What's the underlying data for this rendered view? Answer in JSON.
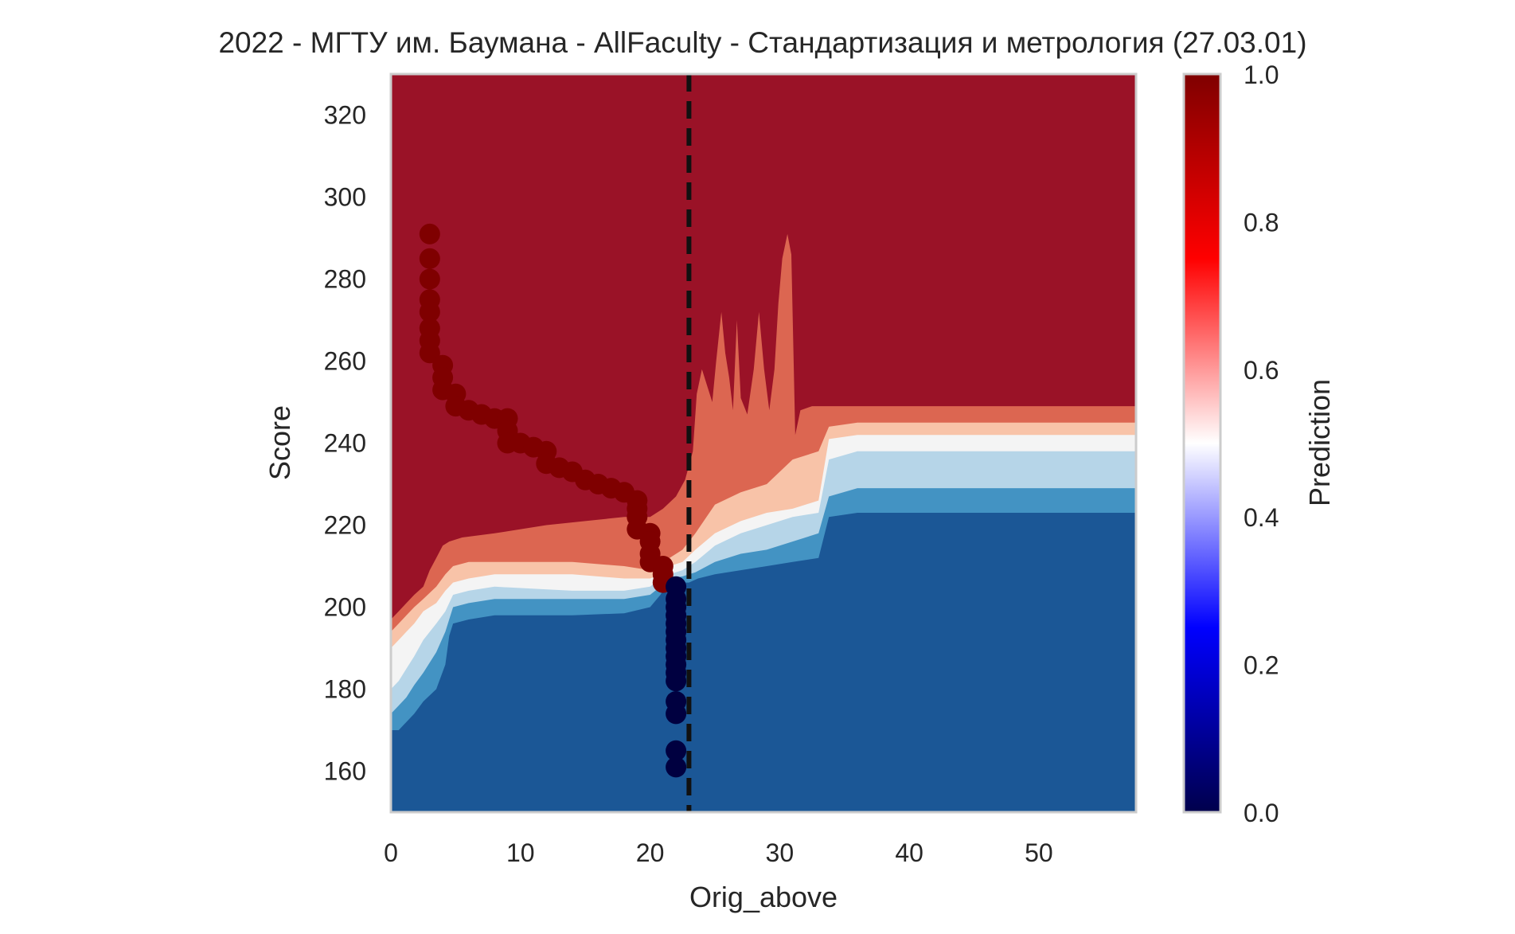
{
  "chart_data": {
    "type": "heatmap",
    "title": "2022 - МГТУ им. Баумана - AllFaculty - Стандартизация и метрология (27.03.01)",
    "xlabel": "Orig_above",
    "ylabel": "Score",
    "xlim": [
      0,
      57.5
    ],
    "ylim": [
      150,
      330
    ],
    "x_ticks": [
      "0",
      "10",
      "20",
      "30",
      "40",
      "50"
    ],
    "x_tick_values": [
      0,
      10,
      20,
      30,
      40,
      50
    ],
    "y_ticks": [
      "160",
      "180",
      "200",
      "220",
      "240",
      "260",
      "280",
      "300",
      "320"
    ],
    "y_tick_values": [
      160,
      180,
      200,
      220,
      240,
      260,
      280,
      300,
      320
    ],
    "colorbar": {
      "label": "Prediction",
      "colormap": "seismic",
      "range": [
        0,
        1
      ],
      "ticks": [
        "0.0",
        "0.2",
        "0.4",
        "0.6",
        "0.8",
        "1.0"
      ],
      "tick_values": [
        0.0,
        0.2,
        0.4,
        0.6,
        0.8,
        1.0
      ]
    },
    "grid": false,
    "vertical_threshold_line": {
      "x": 23,
      "style": "dashed",
      "color": "#111111"
    },
    "contour_levels": [
      {
        "color": "#1b5796",
        "from": 0.0,
        "to": 0.2
      },
      {
        "color": "#4393c3",
        "from": 0.2,
        "to": 0.3
      },
      {
        "color": "#b6d5e8",
        "from": 0.3,
        "to": 0.45
      },
      {
        "color": "#f4f4f4",
        "from": 0.45,
        "to": 0.55
      },
      {
        "color": "#f8c3a8",
        "from": 0.55,
        "to": 0.7
      },
      {
        "color": "#dc6651",
        "from": 0.7,
        "to": 0.8
      },
      {
        "color": "#9a1227",
        "from": 0.8,
        "to": 1.0
      }
    ],
    "contour_boundaries": [
      {
        "name": "b1",
        "points": [
          [
            0,
            170
          ],
          [
            0.6,
            170
          ],
          [
            1.2,
            172
          ],
          [
            1.8,
            174
          ],
          [
            2.5,
            177
          ],
          [
            3.5,
            180
          ],
          [
            4.2,
            186
          ],
          [
            4.5,
            193
          ],
          [
            4.8,
            196
          ],
          [
            6,
            197
          ],
          [
            8,
            198
          ],
          [
            14,
            198
          ],
          [
            18,
            198.5
          ],
          [
            20,
            200
          ],
          [
            20.8,
            203
          ],
          [
            21.2,
            205
          ],
          [
            21.8,
            206
          ],
          [
            22.5,
            206
          ],
          [
            23,
            206
          ],
          [
            23.7,
            207
          ],
          [
            25,
            208
          ],
          [
            27,
            209
          ],
          [
            29,
            210
          ],
          [
            31,
            211
          ],
          [
            33,
            212
          ],
          [
            33.8,
            222
          ],
          [
            36,
            223
          ],
          [
            57.5,
            223
          ]
        ]
      },
      {
        "name": "b2",
        "points": [
          [
            0,
            174
          ],
          [
            0.6,
            176
          ],
          [
            1.2,
            178
          ],
          [
            1.8,
            181
          ],
          [
            2.5,
            184
          ],
          [
            3.5,
            189
          ],
          [
            4.2,
            194
          ],
          [
            4.8,
            200
          ],
          [
            6,
            201
          ],
          [
            8,
            202
          ],
          [
            14,
            202
          ],
          [
            18,
            202
          ],
          [
            20,
            203
          ],
          [
            20.8,
            205
          ],
          [
            21.5,
            207
          ],
          [
            22.5,
            207.5
          ],
          [
            23.5,
            208.5
          ],
          [
            25,
            211
          ],
          [
            27,
            213
          ],
          [
            29,
            214
          ],
          [
            31,
            216
          ],
          [
            33,
            218
          ],
          [
            33.8,
            227
          ],
          [
            36,
            229
          ],
          [
            57.5,
            229
          ]
        ]
      },
      {
        "name": "b3",
        "points": [
          [
            0,
            180
          ],
          [
            0.6,
            182
          ],
          [
            1.2,
            185
          ],
          [
            1.8,
            188
          ],
          [
            2.5,
            192
          ],
          [
            3.5,
            196
          ],
          [
            4.2,
            199
          ],
          [
            4.8,
            203
          ],
          [
            6,
            204
          ],
          [
            8,
            205
          ],
          [
            14,
            204
          ],
          [
            18,
            204
          ],
          [
            20,
            205
          ],
          [
            20.8,
            207
          ],
          [
            21.5,
            208
          ],
          [
            22.5,
            209
          ],
          [
            23.5,
            211
          ],
          [
            25,
            215
          ],
          [
            27,
            218
          ],
          [
            29,
            220
          ],
          [
            31,
            222
          ],
          [
            33,
            223
          ],
          [
            33.8,
            236
          ],
          [
            36,
            238
          ],
          [
            57.5,
            238
          ]
        ]
      },
      {
        "name": "b4",
        "points": [
          [
            0,
            190
          ],
          [
            0.6,
            192
          ],
          [
            1.2,
            194
          ],
          [
            1.8,
            196
          ],
          [
            2.5,
            199
          ],
          [
            3.5,
            201
          ],
          [
            4.2,
            204
          ],
          [
            4.8,
            206
          ],
          [
            6,
            207
          ],
          [
            8,
            208
          ],
          [
            14,
            208
          ],
          [
            18,
            207
          ],
          [
            20,
            207
          ],
          [
            20.8,
            208
          ],
          [
            21.5,
            210
          ],
          [
            22.5,
            211
          ],
          [
            23.5,
            214
          ],
          [
            25,
            218
          ],
          [
            27,
            221
          ],
          [
            29,
            223
          ],
          [
            31,
            224
          ],
          [
            33,
            226
          ],
          [
            33.8,
            241
          ],
          [
            36,
            242
          ],
          [
            57.5,
            242
          ]
        ]
      },
      {
        "name": "b5",
        "points": [
          [
            0,
            194
          ],
          [
            0.6,
            196
          ],
          [
            1.2,
            198
          ],
          [
            1.8,
            200
          ],
          [
            2.5,
            202
          ],
          [
            3.5,
            205
          ],
          [
            4.2,
            208
          ],
          [
            4.8,
            210
          ],
          [
            6,
            211
          ],
          [
            8,
            211
          ],
          [
            14,
            211
          ],
          [
            18,
            210
          ],
          [
            20,
            209
          ],
          [
            20.8,
            210
          ],
          [
            21.5,
            212
          ],
          [
            22.5,
            214
          ],
          [
            23.5,
            218
          ],
          [
            25,
            225
          ],
          [
            27,
            228
          ],
          [
            29,
            230
          ],
          [
            31,
            236
          ],
          [
            33,
            238
          ],
          [
            33.8,
            244
          ],
          [
            36,
            245
          ],
          [
            57.5,
            245
          ]
        ]
      },
      {
        "name": "b6",
        "points": [
          [
            0,
            197
          ],
          [
            0.6,
            199
          ],
          [
            1.2,
            201
          ],
          [
            1.8,
            203
          ],
          [
            2.5,
            205
          ],
          [
            3,
            209
          ],
          [
            3.5,
            212
          ],
          [
            4,
            215
          ],
          [
            4.5,
            216
          ],
          [
            5.5,
            217
          ],
          [
            8,
            218
          ],
          [
            12,
            220
          ],
          [
            15,
            221
          ],
          [
            18,
            222
          ],
          [
            20,
            222
          ],
          [
            21,
            224
          ],
          [
            22,
            227
          ],
          [
            22.7,
            231
          ],
          [
            23.3,
            238
          ],
          [
            23.6,
            252
          ],
          [
            24,
            258
          ],
          [
            24.4,
            254
          ],
          [
            24.8,
            250
          ],
          [
            25.1,
            260
          ],
          [
            25.5,
            272
          ],
          [
            25.8,
            262
          ],
          [
            26.1,
            256
          ],
          [
            26.4,
            248
          ],
          [
            26.7,
            270
          ],
          [
            27,
            251
          ],
          [
            27.5,
            247
          ],
          [
            28,
            258
          ],
          [
            28.4,
            272
          ],
          [
            28.8,
            258
          ],
          [
            29.2,
            248
          ],
          [
            29.6,
            258
          ],
          [
            29.9,
            274
          ],
          [
            30.2,
            285
          ],
          [
            30.6,
            291
          ],
          [
            30.9,
            286
          ],
          [
            31.2,
            242
          ],
          [
            31.6,
            248
          ],
          [
            32.5,
            249
          ],
          [
            33,
            249
          ],
          [
            34,
            249
          ],
          [
            57.5,
            249
          ]
        ]
      }
    ],
    "series": [
      {
        "name": "",
        "color": "#7f0000",
        "label_value": 1,
        "points": [
          [
            3,
            291
          ],
          [
            3,
            285
          ],
          [
            3,
            280
          ],
          [
            3,
            275
          ],
          [
            3,
            272
          ],
          [
            3,
            268
          ],
          [
            3,
            265
          ],
          [
            3,
            262
          ],
          [
            4,
            259
          ],
          [
            4,
            256
          ],
          [
            4,
            253
          ],
          [
            5,
            252
          ],
          [
            5,
            249
          ],
          [
            6,
            248
          ],
          [
            7,
            247
          ],
          [
            8,
            246
          ],
          [
            9,
            246
          ],
          [
            9,
            243
          ],
          [
            9,
            240
          ],
          [
            10,
            240
          ],
          [
            11,
            239
          ],
          [
            12,
            238
          ],
          [
            12,
            235
          ],
          [
            13,
            234
          ],
          [
            14,
            233
          ],
          [
            15,
            231
          ],
          [
            16,
            230
          ],
          [
            17,
            229
          ],
          [
            18,
            228
          ],
          [
            19,
            226
          ],
          [
            19,
            224
          ],
          [
            19,
            222
          ],
          [
            19,
            219
          ],
          [
            20,
            218
          ],
          [
            20,
            216
          ],
          [
            20,
            213
          ],
          [
            20,
            211
          ],
          [
            21,
            210
          ],
          [
            21,
            208
          ],
          [
            21,
            206
          ]
        ]
      },
      {
        "name": "",
        "color": "#000040",
        "label_value": 0,
        "points": [
          [
            22,
            205
          ],
          [
            22,
            202
          ],
          [
            22,
            200
          ],
          [
            22,
            198
          ],
          [
            22,
            196
          ],
          [
            22,
            194
          ],
          [
            22,
            192
          ],
          [
            22,
            190
          ],
          [
            22,
            188
          ],
          [
            22,
            186
          ],
          [
            22,
            184
          ],
          [
            22,
            182
          ],
          [
            22,
            177
          ],
          [
            22,
            174
          ],
          [
            22,
            165
          ],
          [
            22,
            161
          ]
        ]
      }
    ]
  }
}
